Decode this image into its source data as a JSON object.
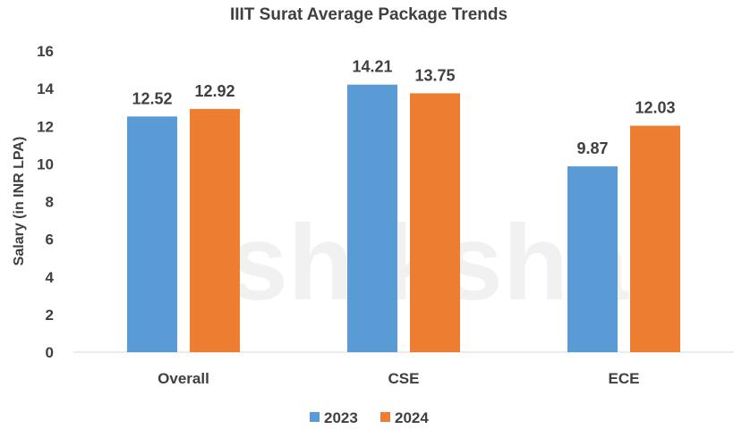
{
  "chart_data": {
    "type": "bar",
    "title": "IIIT Surat Average Package Trends",
    "xlabel": "",
    "ylabel": "Salary (in INR LPA)",
    "ylim": [
      0,
      16
    ],
    "yticks": [
      0,
      2,
      4,
      6,
      8,
      10,
      12,
      14,
      16
    ],
    "categories": [
      "Overall",
      "CSE",
      "ECE"
    ],
    "series": [
      {
        "name": "2023",
        "values": [
          12.52,
          14.21,
          9.87
        ],
        "labels": [
          "12.52",
          "14.21",
          "9.87"
        ],
        "color": "#5B9BD5"
      },
      {
        "name": "2024",
        "values": [
          12.92,
          13.75,
          12.03
        ],
        "labels": [
          "12.92",
          "13.75",
          "12.03"
        ],
        "color": "#ED7D31"
      }
    ],
    "grid": false,
    "legend_position": "bottom",
    "watermark": "shiksha",
    "axis_color": "#d9d9d9"
  }
}
